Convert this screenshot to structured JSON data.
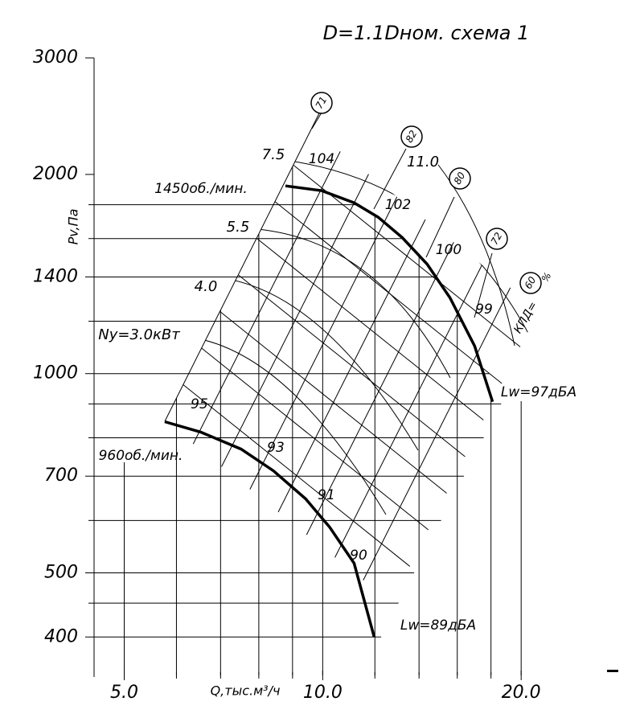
{
  "chart_data": {
    "type": "line",
    "title": "D=1.1Dном. схема 1",
    "y_label": "Pv,Па",
    "x_label": "Q,тыс.м³/ч",
    "log_x": true,
    "log_y": true,
    "xlim": [
      4.5,
      28
    ],
    "ylim": [
      350,
      3000
    ],
    "xticks": [
      {
        "value": 5,
        "label": "5.0"
      },
      {
        "value": 10,
        "label": "10.0"
      },
      {
        "value": 20,
        "label": "20.0"
      }
    ],
    "yticks": [
      400,
      500,
      700,
      1000,
      1400,
      2000,
      3000
    ],
    "xminor": [
      6,
      7,
      8,
      9,
      12,
      14,
      16,
      18
    ],
    "yminor": [
      450,
      600,
      800,
      900,
      1200,
      1600,
      1800
    ],
    "series": [
      {
        "name": "1450об./мин.",
        "color": "#000000",
        "x": [
          8.78,
          9.97,
          11.16,
          12.14,
          13.2,
          14.4,
          15.6,
          17.0,
          18.1
        ],
        "values": [
          1922,
          1890,
          1812,
          1723,
          1606,
          1464,
          1302,
          1101,
          907
        ]
      },
      {
        "name": "960об./мин.",
        "color": "#000000",
        "x": [
          5.76,
          6.53,
          7.52,
          8.42,
          9.42,
          10.25,
          11.16,
          11.97
        ],
        "values": [
          846,
          816,
          769,
          713,
          647,
          586,
          517,
          400
        ]
      }
    ],
    "power_labels": [
      "7.5",
      "5.5",
      "4.0",
      "Ny=3.0кВт",
      "11.0"
    ],
    "noise_labels": [
      "104",
      "102",
      "100",
      "99",
      "95",
      "93",
      "91",
      "90"
    ],
    "efficiency_labels": [
      "71",
      "82",
      "80",
      "72",
      "60"
    ],
    "efficiency_prefix": "КПД=",
    "efficiency_unit": "%",
    "sound_labels": [
      "Lw=97дБА",
      "Lw=89дБА"
    ]
  }
}
